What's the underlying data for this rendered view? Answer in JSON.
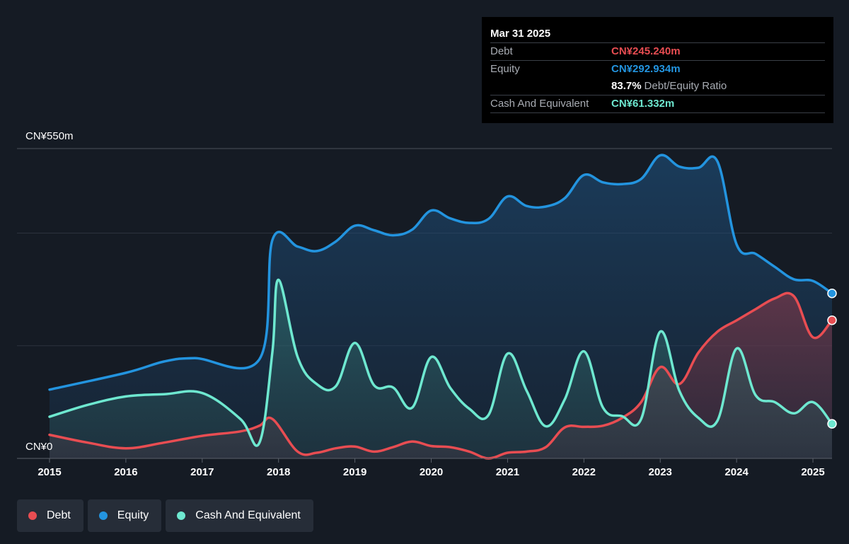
{
  "chart_data": {
    "type": "area",
    "y_axis": {
      "top_label": "CN¥550m",
      "bottom_label": "CN¥0",
      "ylim": [
        0,
        550
      ],
      "unit": "CN¥ millions"
    },
    "x_ticks": [
      "2015",
      "2016",
      "2017",
      "2018",
      "2019",
      "2020",
      "2021",
      "2022",
      "2023",
      "2024",
      "2025"
    ],
    "x_range": [
      2015.0,
      2025.25
    ],
    "grid": true,
    "legend_position": "bottom-left",
    "series": [
      {
        "name": "Equity",
        "color": "#2394df",
        "points": [
          [
            2015.0,
            122
          ],
          [
            2016.0,
            152
          ],
          [
            2016.5,
            172
          ],
          [
            2016.9,
            178
          ],
          [
            2017.75,
            176
          ],
          [
            2017.92,
            388
          ],
          [
            2018.25,
            376
          ],
          [
            2018.5,
            368
          ],
          [
            2018.75,
            385
          ],
          [
            2019.0,
            413
          ],
          [
            2019.25,
            405
          ],
          [
            2019.5,
            396
          ],
          [
            2019.75,
            406
          ],
          [
            2020.0,
            440
          ],
          [
            2020.25,
            426
          ],
          [
            2020.5,
            418
          ],
          [
            2020.75,
            425
          ],
          [
            2021.0,
            465
          ],
          [
            2021.25,
            448
          ],
          [
            2021.5,
            447
          ],
          [
            2021.75,
            462
          ],
          [
            2022.0,
            503
          ],
          [
            2022.25,
            490
          ],
          [
            2022.5,
            487
          ],
          [
            2022.75,
            496
          ],
          [
            2023.0,
            538
          ],
          [
            2023.25,
            518
          ],
          [
            2023.5,
            516
          ],
          [
            2023.75,
            527
          ],
          [
            2024.0,
            380
          ],
          [
            2024.25,
            363
          ],
          [
            2024.5,
            340
          ],
          [
            2024.75,
            318
          ],
          [
            2025.0,
            315
          ],
          [
            2025.25,
            292.934
          ]
        ]
      },
      {
        "name": "Debt",
        "color": "#e84d52",
        "points": [
          [
            2015.0,
            42
          ],
          [
            2015.5,
            28
          ],
          [
            2016.0,
            18
          ],
          [
            2016.5,
            28
          ],
          [
            2017.0,
            40
          ],
          [
            2017.5,
            48
          ],
          [
            2017.75,
            58
          ],
          [
            2017.92,
            70
          ],
          [
            2018.25,
            12
          ],
          [
            2018.5,
            10
          ],
          [
            2018.75,
            18
          ],
          [
            2019.0,
            21
          ],
          [
            2019.25,
            12
          ],
          [
            2019.5,
            20
          ],
          [
            2019.75,
            30
          ],
          [
            2020.0,
            22
          ],
          [
            2020.25,
            20
          ],
          [
            2020.5,
            12
          ],
          [
            2020.75,
            0
          ],
          [
            2021.0,
            10
          ],
          [
            2021.25,
            12
          ],
          [
            2021.5,
            20
          ],
          [
            2021.75,
            55
          ],
          [
            2022.0,
            56
          ],
          [
            2022.25,
            58
          ],
          [
            2022.5,
            72
          ],
          [
            2022.75,
            100
          ],
          [
            2023.0,
            162
          ],
          [
            2023.25,
            132
          ],
          [
            2023.5,
            188
          ],
          [
            2023.75,
            225
          ],
          [
            2024.0,
            245
          ],
          [
            2024.25,
            265
          ],
          [
            2024.5,
            284
          ],
          [
            2024.75,
            288
          ],
          [
            2025.0,
            215
          ],
          [
            2025.25,
            245.24
          ]
        ]
      },
      {
        "name": "Cash And Equivalent",
        "color": "#6ee8d0",
        "points": [
          [
            2015.0,
            74
          ],
          [
            2015.5,
            95
          ],
          [
            2016.0,
            110
          ],
          [
            2016.5,
            114
          ],
          [
            2017.0,
            116
          ],
          [
            2017.5,
            70
          ],
          [
            2017.75,
            28
          ],
          [
            2017.92,
            190
          ],
          [
            2018.0,
            317
          ],
          [
            2018.25,
            180
          ],
          [
            2018.5,
            132
          ],
          [
            2018.75,
            128
          ],
          [
            2019.0,
            205
          ],
          [
            2019.25,
            130
          ],
          [
            2019.5,
            126
          ],
          [
            2019.75,
            90
          ],
          [
            2020.0,
            180
          ],
          [
            2020.25,
            125
          ],
          [
            2020.5,
            88
          ],
          [
            2020.75,
            77
          ],
          [
            2021.0,
            186
          ],
          [
            2021.25,
            120
          ],
          [
            2021.5,
            57
          ],
          [
            2021.75,
            105
          ],
          [
            2022.0,
            190
          ],
          [
            2022.25,
            90
          ],
          [
            2022.5,
            75
          ],
          [
            2022.75,
            70
          ],
          [
            2023.0,
            225
          ],
          [
            2023.25,
            120
          ],
          [
            2023.5,
            72
          ],
          [
            2023.75,
            67
          ],
          [
            2024.0,
            195
          ],
          [
            2024.25,
            112
          ],
          [
            2024.5,
            100
          ],
          [
            2024.75,
            80
          ],
          [
            2025.0,
            100
          ],
          [
            2025.25,
            61.332
          ]
        ]
      }
    ]
  },
  "tooltip": {
    "date": "Mar 31 2025",
    "rows": [
      {
        "label": "Debt",
        "value": "CN¥245.240m",
        "color": "#e84d52"
      },
      {
        "label": "Equity",
        "value": "CN¥292.934m",
        "color": "#2394df"
      },
      {
        "label": "",
        "value": "83.7%",
        "extra": "Debt/Equity Ratio",
        "color": "#ffffff"
      },
      {
        "label": "Cash And Equivalent",
        "value": "CN¥61.332m",
        "color": "#6ee8d0"
      }
    ]
  },
  "legend": [
    {
      "label": "Debt",
      "color": "#e84d52"
    },
    {
      "label": "Equity",
      "color": "#2394df"
    },
    {
      "label": "Cash And Equivalent",
      "color": "#6ee8d0"
    }
  ]
}
